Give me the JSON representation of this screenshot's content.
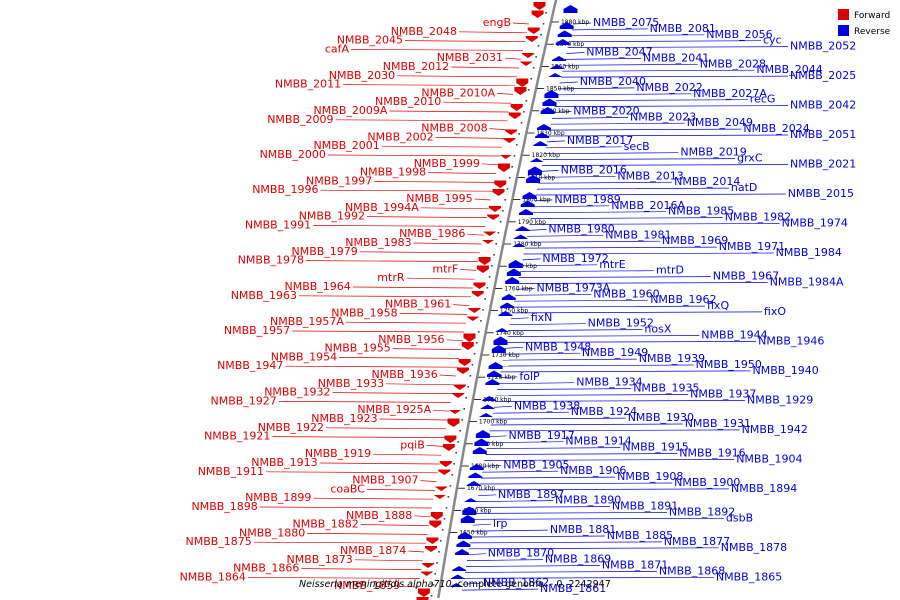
{
  "colors": {
    "forward": "#dd0000",
    "reverse": "#0000dd",
    "backbone": "#888888"
  },
  "legend": {
    "forward": "Forward",
    "reverse": "Reverse"
  },
  "caption": {
    "organism": "Neisseria meningitidis alpha710",
    "rest": ", complete genome. - 0..2242947"
  },
  "ticks": [
    "1880 kbp",
    "1870 kbp",
    "1860 kbp",
    "1850 kbp",
    "1840 kbp",
    "1830 kbp",
    "1820 kbp",
    "1810 kbp",
    "1800 kbp",
    "1790 kbp",
    "1780 kbp",
    "1770 kbp",
    "1760 kbp",
    "1750 kbp",
    "1740 kbp",
    "1730 kbp",
    "1720 kbp",
    "1710 kbp",
    "1700 kbp",
    "1690 kbp",
    "1680 kbp",
    "1670 kbp",
    "1660 kbp",
    "1650 kbp"
  ],
  "forward_genes": [
    "engB",
    "NMBB_2048",
    "NMBB_2045",
    "cafA",
    "NMBB_2031",
    "NMBB_2012",
    "NMBB_2030",
    "NMBB_2011",
    "NMBB_2010A",
    "NMBB_2010",
    "NMBB_2009A",
    "NMBB_2009",
    "NMBB_2008",
    "NMBB_2002",
    "NMBB_2001",
    "NMBB_2000",
    "NMBB_1999",
    "NMBB_1998",
    "NMBB_1997",
    "NMBB_1996",
    "NMBB_1995",
    "NMBB_1994A",
    "NMBB_1992",
    "NMBB_1991",
    "NMBB_1986",
    "NMBB_1983",
    "NMBB_1979",
    "NMBB_1978",
    "mtrF",
    "mtrR",
    "NMBB_1964",
    "NMBB_1963",
    "NMBB_1961",
    "NMBB_1958",
    "NMBB_1957A",
    "NMBB_1957",
    "NMBB_1956",
    "NMBB_1955",
    "NMBB_1954",
    "NMBB_1947",
    "NMBB_1936",
    "NMBB_1933",
    "NMBB_1932",
    "NMBB_1927",
    "NMBB_1925A",
    "NMBB_1923",
    "NMBB_1922",
    "NMBB_1921",
    "pqiB",
    "NMBB_1919",
    "NMBB_1913",
    "NMBB_1911",
    "NMBB_1907",
    "coaBC",
    "NMBB_1899",
    "NMBB_1898",
    "NMBB_1888",
    "NMBB_1882",
    "NMBB_1880",
    "NMBB_1875",
    "NMBB_1874",
    "NMBB_1873",
    "NMBB_1866",
    "NMBB_1864",
    "NMBB_1859"
  ],
  "reverse_genes": [
    "NMBB_2075",
    "NMBB_2081",
    "NMBB_2056",
    "cyc",
    "NMBB_2052",
    "NMBB_2047",
    "NMBB_2041",
    "NMBB_2028",
    "NMBB_2044",
    "NMBB_2025",
    "NMBB_2040",
    "NMBB_2022",
    "NMBB_2027A",
    "recG",
    "NMBB_2042",
    "NMBB_2020",
    "NMBB_2023",
    "NMBB_2049",
    "NMBB_2024",
    "NMBB_2051",
    "NMBB_2017",
    "secB",
    "NMBB_2019",
    "grxC",
    "NMBB_2021",
    "NMBB_2016",
    "NMBB_2013",
    "NMBB_2014",
    "natD",
    "NMBB_2015",
    "NMBB_1989",
    "NMBB_2016A",
    "NMBB_1985",
    "NMBB_1982",
    "NMBB_1974",
    "NMBB_1980",
    "NMBB_1981",
    "NMBB_1969",
    "NMBB_1971",
    "NMBB_1984",
    "NMBB_1972",
    "mtrE",
    "mtrD",
    "NMBB_1967",
    "NMBB_1984A",
    "NMBB_1973A",
    "NMBB_1960",
    "NMBB_1962",
    "fixQ",
    "fixO",
    "fixN",
    "NMBB_1952",
    "nosX",
    "NMBB_1944",
    "NMBB_1946",
    "NMBB_1948",
    "NMBB_1949",
    "NMBB_1939",
    "NMBB_1950",
    "NMBB_1940",
    "folP",
    "NMBB_1934",
    "NMBB_1935",
    "NMBB_1937",
    "NMBB_1929",
    "NMBB_1938",
    "NMBB_1924",
    "NMBB_1930",
    "NMBB_1931",
    "NMBB_1942",
    "NMBB_1917",
    "NMBB_1914",
    "NMBB_1915",
    "NMBB_1916",
    "NMBB_1904",
    "NMBB_1905",
    "NMBB_1906",
    "NMBB_1908",
    "NMBB_1900",
    "NMBB_1894",
    "NMBB_1897",
    "NMBB_1890",
    "NMBB_1891",
    "NMBB_1892",
    "dsbB",
    "lrp",
    "NMBB_1881",
    "NMBB_1885",
    "NMBB_1877",
    "NMBB_1878",
    "NMBB_1870",
    "NMBB_1869",
    "NMBB_1871",
    "NMBB_1868",
    "NMBB_1865",
    "NMBB_1862",
    "NMBB_1861"
  ]
}
